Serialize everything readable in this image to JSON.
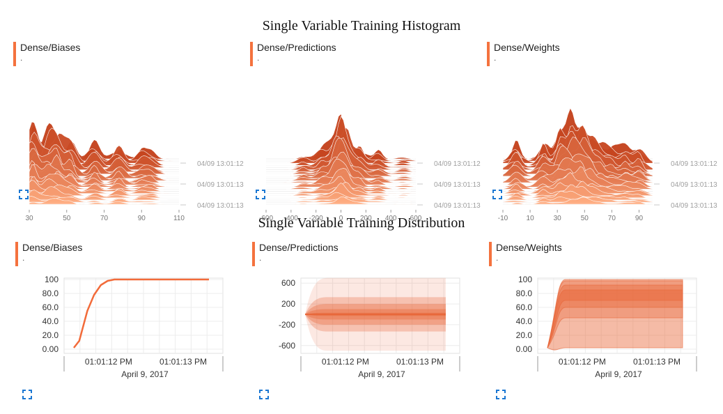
{
  "histogram_section": {
    "title": "Single Variable Training Histogram"
  },
  "distribution_section": {
    "title": "Single Variable Training Distribution"
  },
  "colors": {
    "accent": "#f4723e",
    "dark": "#c4401a",
    "mid": "#e8683a",
    "light": "#ffab7f",
    "line": "#f26b3a",
    "grid": "#e0e0e0"
  },
  "histograms": [
    {
      "title": "Dense/Biases",
      "subtitle": ".",
      "x_ticks": [
        "30",
        "50",
        "70",
        "90",
        "110"
      ],
      "x_range": [
        30,
        110
      ],
      "steps": [
        "04/09 13:01:12",
        "04/09 13:01:13",
        "04/09 13:01:13"
      ],
      "expand_icon": "fullscreen-icon"
    },
    {
      "title": "Dense/Predictions",
      "subtitle": ".",
      "x_ticks": [
        "-600",
        "-400",
        "-200",
        "0",
        "200",
        "400",
        "600"
      ],
      "x_range": [
        -600,
        600
      ],
      "steps": [
        "04/09 13:01:12",
        "04/09 13:01:13",
        "04/09 13:01:13"
      ],
      "expand_icon": "fullscreen-icon"
    },
    {
      "title": "Dense/Weights",
      "subtitle": ".",
      "x_ticks": [
        "-10",
        "10",
        "30",
        "50",
        "70",
        "90"
      ],
      "x_range": [
        -10,
        100
      ],
      "steps": [
        "04/09 13:01:12",
        "04/09 13:01:13",
        "04/09 13:01:13"
      ],
      "expand_icon": "fullscreen-icon"
    }
  ],
  "chart_data": [
    {
      "type": "area",
      "chart": "histogram",
      "title": "Dense/Biases",
      "x_range": [
        30,
        110
      ],
      "series": [
        {
          "name": "",
          "peaks": [
            [
              32,
              13
            ],
            [
              40,
              8
            ],
            [
              45,
              10
            ],
            [
              52,
              8
            ],
            [
              65,
              6
            ],
            [
              78,
              6
            ],
            [
              90,
              3
            ],
            [
              95,
              3
            ]
          ]
        }
      ]
    },
    {
      "type": "area",
      "chart": "histogram",
      "title": "Dense/Predictions",
      "x_range": [
        -600,
        600
      ],
      "series": [
        {
          "name": "",
          "peaks": [
            [
              -300,
              2
            ],
            [
              -150,
              4
            ],
            [
              -50,
              6
            ],
            [
              0,
              10
            ],
            [
              50,
              7
            ],
            [
              150,
              5
            ],
            [
              300,
              3
            ],
            [
              500,
              1
            ]
          ]
        }
      ]
    },
    {
      "type": "area",
      "chart": "histogram",
      "title": "Dense/Weights",
      "x_range": [
        -10,
        100
      ],
      "series": [
        {
          "name": "",
          "peaks": [
            [
              0,
              6
            ],
            [
              20,
              7
            ],
            [
              32,
              10
            ],
            [
              40,
              12
            ],
            [
              48,
              12
            ],
            [
              55,
              7
            ],
            [
              62,
              5
            ],
            [
              70,
              4
            ],
            [
              80,
              5
            ],
            [
              90,
              5
            ]
          ]
        }
      ]
    },
    {
      "type": "line",
      "chart": "distribution",
      "title": "Dense/Biases",
      "ylim": [
        0,
        100
      ],
      "y_ticks": [
        "100",
        "80.0",
        "60.0",
        "40.0",
        "20.0",
        "0.00"
      ],
      "x_ticks": [
        "01:01:12 PM",
        "01:01:13 PM"
      ],
      "xlabel": "April 9, 2017",
      "x": [
        0,
        0.04,
        0.1,
        0.15,
        0.2,
        0.25,
        0.3,
        0.4,
        1
      ],
      "values": [
        2,
        12,
        55,
        78,
        92,
        98,
        100,
        100,
        100
      ]
    },
    {
      "type": "area",
      "chart": "distribution",
      "title": "Dense/Predictions",
      "ylim": [
        -750,
        750
      ],
      "y_ticks": [
        "600",
        "200",
        "-200",
        "-600"
      ],
      "x_ticks": [
        "01:01:12 PM",
        "01:01:13 PM"
      ],
      "xlabel": "April 9, 2017",
      "bands": [
        [
          -700,
          700
        ],
        [
          -330,
          330
        ],
        [
          -200,
          200
        ],
        [
          -100,
          100
        ],
        [
          -30,
          30
        ]
      ]
    },
    {
      "type": "area",
      "chart": "distribution",
      "title": "Dense/Weights",
      "ylim": [
        -10,
        105
      ],
      "y_ticks": [
        "100",
        "80.0",
        "60.0",
        "40.0",
        "20.0",
        "0.00"
      ],
      "x_ticks": [
        "01:01:12 PM",
        "01:01:13 PM"
      ],
      "xlabel": "April 9, 2017",
      "bands": [
        [
          2,
          100
        ],
        [
          45,
          98
        ],
        [
          60,
          92
        ],
        [
          70,
          85
        ]
      ]
    }
  ],
  "distributions": [
    {
      "title": "Dense/Biases",
      "subtitle": "."
    },
    {
      "title": "Dense/Predictions",
      "subtitle": "."
    },
    {
      "title": "Dense/Weights",
      "subtitle": "."
    }
  ]
}
